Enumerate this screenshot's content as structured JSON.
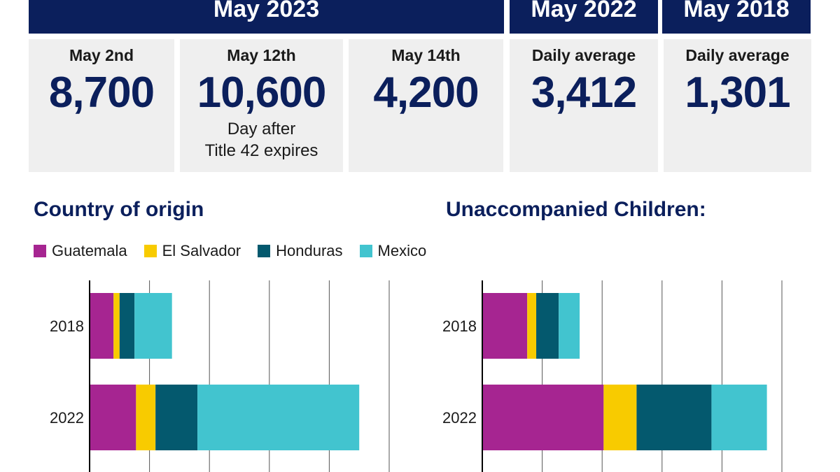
{
  "headers": [
    {
      "text": "May 2023"
    },
    {
      "text": "May 2022"
    },
    {
      "text": "May 2018"
    }
  ],
  "cards": [
    {
      "label": "May 2nd",
      "value": "8,700",
      "note1": "",
      "note2": ""
    },
    {
      "label": "May 12th",
      "value": "10,600",
      "note1": "Day after",
      "note2": "Title 42 expires"
    },
    {
      "label": "May 14th",
      "value": "4,200",
      "note1": "",
      "note2": ""
    },
    {
      "label": "Daily average",
      "value": "3,412",
      "note1": "",
      "note2": ""
    },
    {
      "label": "Daily average",
      "value": "1,301",
      "note1": "",
      "note2": ""
    }
  ],
  "colors": {
    "header_bg": "#0b1f5c",
    "card_bg": "#efefef",
    "Guatemala": "#a62591",
    "El Salvador": "#f8cb00",
    "Honduras": "#04596e",
    "Mexico": "#42c4cf"
  },
  "legend": [
    "Guatemala",
    "El Salvador",
    "Honduras",
    "Mexico"
  ],
  "chart_data": [
    {
      "type": "bar",
      "orientation": "horizontal",
      "stacked": true,
      "title": "Country of origin",
      "categories": [
        "2018",
        "2022"
      ],
      "xlim": [
        0,
        100
      ],
      "grid": true,
      "series": [
        {
          "name": "Guatemala",
          "values": [
            8,
            15.5
          ]
        },
        {
          "name": "El Salvador",
          "values": [
            2,
            6.5
          ]
        },
        {
          "name": "Honduras",
          "values": [
            5,
            14
          ]
        },
        {
          "name": "Mexico",
          "values": [
            12.5,
            54
          ]
        }
      ]
    },
    {
      "type": "bar",
      "orientation": "horizontal",
      "stacked": true,
      "title": "Unaccompanied Children:",
      "categories": [
        "2018",
        "2022"
      ],
      "xlim": [
        0,
        100
      ],
      "grid": true,
      "series": [
        {
          "name": "Guatemala",
          "values": [
            15,
            40.5
          ]
        },
        {
          "name": "El Salvador",
          "values": [
            3,
            11
          ]
        },
        {
          "name": "Honduras",
          "values": [
            7.5,
            25
          ]
        },
        {
          "name": "Mexico",
          "values": [
            7,
            18.5
          ]
        }
      ]
    }
  ]
}
